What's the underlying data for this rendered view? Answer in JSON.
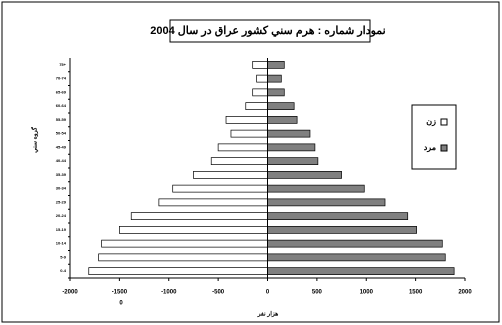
{
  "chart_data": {
    "type": "pyramid",
    "title": "نمودار شماره : هرم سني كشور عراق در سال 2004",
    "x_label": "هزار نفر",
    "y_label": "گروه سني",
    "x_note": "0",
    "categories": [
      "0-4",
      "5-9",
      "10-14",
      "15-19",
      "20-24",
      "25-29",
      "30-34",
      "35-39",
      "40-44",
      "45-49",
      "50-54",
      "55-59",
      "60-64",
      "65-69",
      "70-74",
      "75+"
    ],
    "series": [
      {
        "name": "زن",
        "color": "#ffffff",
        "values": [
          -1810,
          -1710,
          -1680,
          -1500,
          -1380,
          -1100,
          -960,
          -750,
          -570,
          -500,
          -370,
          -420,
          -220,
          -150,
          -110,
          -150
        ]
      },
      {
        "name": "مرد",
        "color": "#808080",
        "values": [
          1890,
          1800,
          1770,
          1510,
          1420,
          1190,
          980,
          750,
          510,
          480,
          430,
          300,
          270,
          170,
          140,
          170
        ]
      }
    ],
    "xlim": [
      -2000,
      2000
    ],
    "xticks": [
      -2000,
      -1500,
      -1000,
      -500,
      0,
      500,
      1000,
      1500,
      2000
    ],
    "legend": "right"
  }
}
